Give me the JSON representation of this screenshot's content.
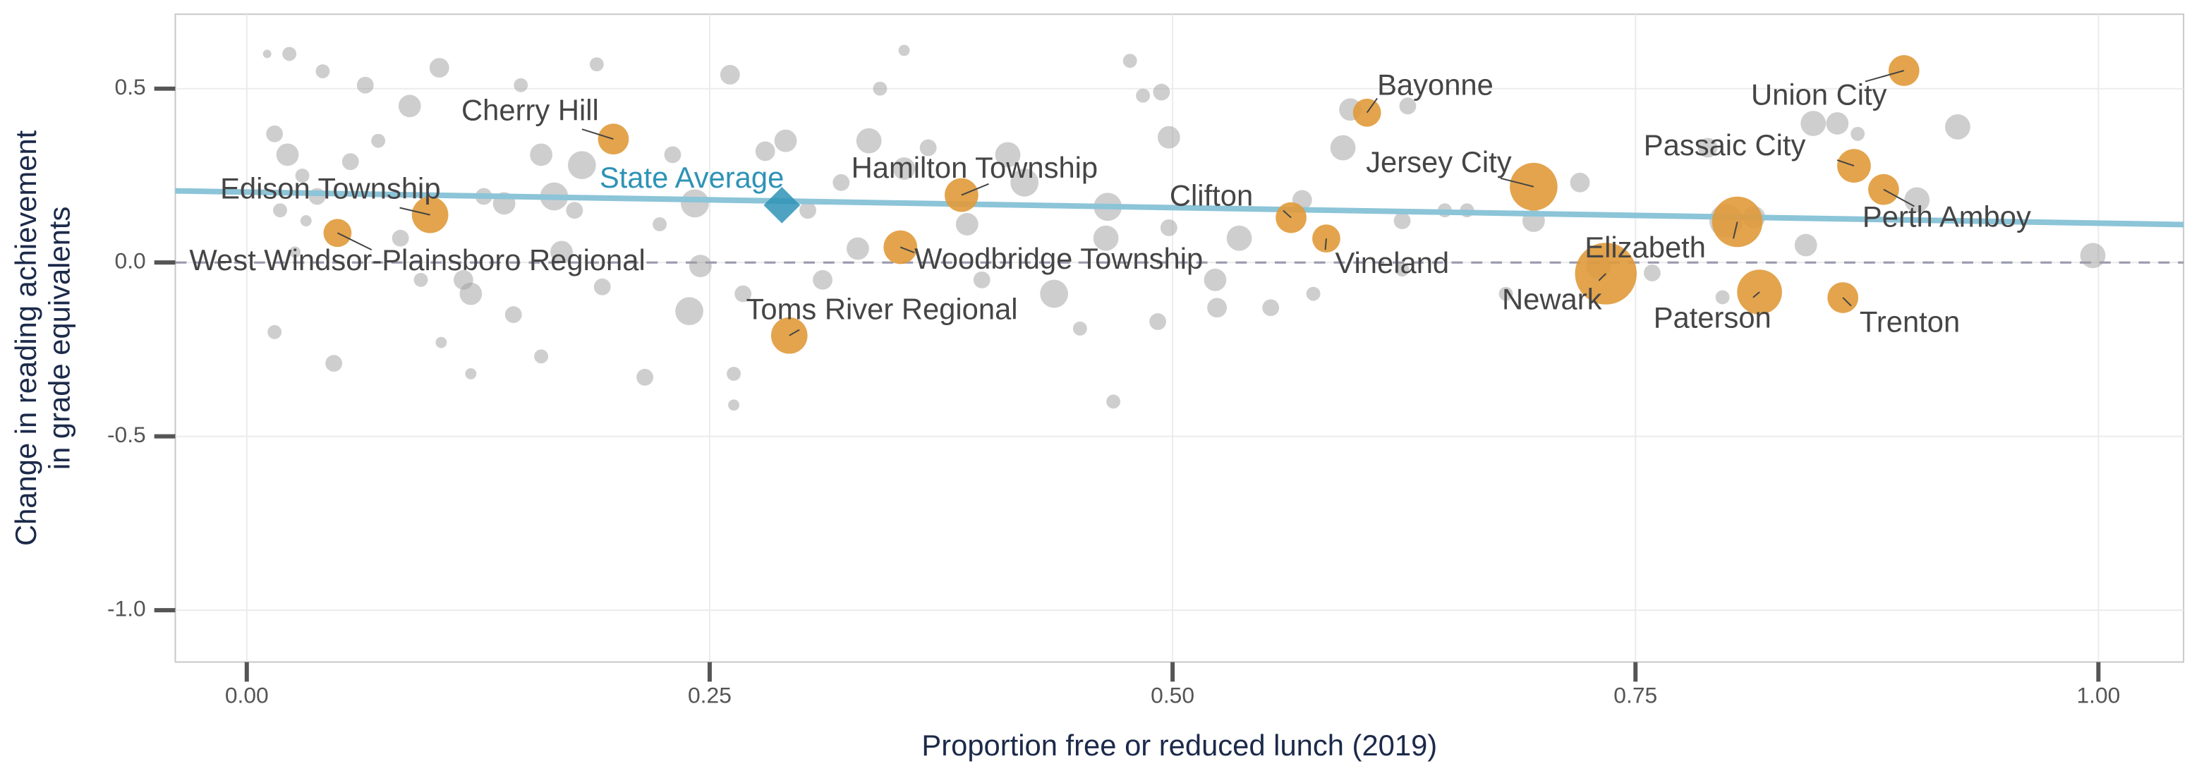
{
  "chart_data": {
    "type": "scatter",
    "xlabel": "Proportion free or reduced lunch (2019)",
    "ylabel": [
      "Change in reading  achievement",
      "in grade equivalents"
    ],
    "xlim": [
      -0.0386,
      1.046
    ],
    "ylim": [
      -1.149,
      0.714
    ],
    "xticks": [
      {
        "value": 0,
        "label": "0.00"
      },
      {
        "value": 0.25,
        "label": "0.25"
      },
      {
        "value": 0.5,
        "label": "0.50"
      },
      {
        "value": 0.75,
        "label": "0.75"
      },
      {
        "value": 1,
        "label": "1.00"
      }
    ],
    "yticks": [
      0.5,
      {
        "value": 0,
        "label": "0.0"
      },
      -0.5,
      {
        "value": -1,
        "label": "-1.0"
      }
    ],
    "grid": true,
    "reference_line": 0,
    "trend_line": {
      "x": [
        -0.0386,
        1.046
      ],
      "y": [
        0.206,
        0.109
      ],
      "color": "#8cc4d8"
    },
    "points": {
      "color": "#9e9e9e",
      "x": [
        0.011,
        0.023,
        0.041,
        0.064,
        0.088,
        0.104,
        0.015,
        0.022,
        0.03,
        0.038,
        0.018,
        0.032,
        0.026,
        0.015,
        0.047,
        0.056,
        0.071,
        0.083,
        0.094,
        0.117,
        0.121,
        0.105,
        0.121,
        0.128,
        0.139,
        0.148,
        0.159,
        0.166,
        0.177,
        0.181,
        0.189,
        0.17,
        0.144,
        0.159,
        0.192,
        0.215,
        0.223,
        0.23,
        0.242,
        0.239,
        0.245,
        0.261,
        0.263,
        0.263,
        0.268,
        0.28,
        0.291,
        0.303,
        0.311,
        0.321,
        0.33,
        0.336,
        0.342,
        0.355,
        0.355,
        0.368,
        0.389,
        0.397,
        0.411,
        0.42,
        0.436,
        0.45,
        0.464,
        0.465,
        0.468,
        0.477,
        0.484,
        0.494,
        0.498,
        0.498,
        0.492,
        0.523,
        0.524,
        0.536,
        0.553,
        0.57,
        0.576,
        0.592,
        0.596,
        0.624,
        0.627,
        0.647,
        0.659,
        0.695,
        0.72,
        0.73,
        0.759,
        0.789,
        0.797,
        0.814,
        0.842,
        0.846,
        0.859,
        0.87,
        0.902,
        0.924,
        0.997,
        0.68,
        0.624,
        0.799
      ],
      "y": [
        0.6,
        0.6,
        0.55,
        0.51,
        0.45,
        0.56,
        0.37,
        0.31,
        0.25,
        0.19,
        0.15,
        0.12,
        0.03,
        -0.2,
        -0.29,
        0.29,
        0.35,
        0.07,
        -0.05,
        -0.05,
        -0.09,
        -0.23,
        -0.32,
        0.19,
        0.17,
        0.51,
        0.31,
        0.19,
        0.15,
        0.28,
        0.57,
        0.03,
        -0.15,
        -0.27,
        -0.07,
        -0.33,
        0.11,
        0.31,
        0.17,
        -0.14,
        -0.01,
        0.54,
        -0.32,
        -0.41,
        -0.09,
        0.32,
        0.35,
        0.15,
        -0.05,
        0.23,
        0.04,
        0.35,
        0.5,
        0.61,
        0.27,
        0.33,
        0.11,
        -0.05,
        0.31,
        0.23,
        -0.09,
        -0.19,
        0.07,
        0.16,
        -0.4,
        0.58,
        0.48,
        0.49,
        0.36,
        0.1,
        -0.17,
        -0.05,
        -0.13,
        0.07,
        -0.13,
        0.18,
        -0.09,
        0.33,
        0.44,
        0.12,
        0.45,
        0.15,
        0.15,
        0.12,
        0.23,
        -0.01,
        -0.03,
        0.33,
        -0.1,
        0.13,
        0.05,
        0.4,
        0.4,
        0.37,
        0.18,
        0.39,
        0.02,
        -0.09,
        -0.02,
        0.12
      ],
      "size": [
        3,
        5,
        5,
        6,
        8,
        7,
        6,
        8,
        5,
        6,
        5,
        4,
        4,
        5,
        6,
        6,
        5,
        6,
        5,
        7,
        8,
        4,
        4,
        6,
        8,
        5,
        8,
        10,
        6,
        10,
        5,
        8,
        6,
        5,
        6,
        6,
        5,
        6,
        10,
        10,
        8,
        7,
        5,
        4,
        6,
        7,
        8,
        6,
        7,
        6,
        8,
        9,
        5,
        4,
        8,
        6,
        8,
        6,
        9,
        10,
        10,
        5,
        9,
        10,
        5,
        5,
        5,
        6,
        8,
        6,
        6,
        8,
        7,
        9,
        6,
        7,
        5,
        9,
        8,
        6,
        6,
        5,
        5,
        8,
        7,
        9,
        6,
        7,
        5,
        8,
        8,
        9,
        8,
        5,
        9,
        9,
        9,
        5,
        5,
        12
      ]
    },
    "districts": {
      "color": "#e09a3a",
      "labels": [
        "Union City",
        "Bayonne",
        "Cherry Hill",
        "Hamilton Township",
        "Jersey City",
        "Passaic City",
        "Perth Amboy",
        "Edison Township",
        "Elizabeth",
        "Clifton",
        "Vineland",
        "Woodbridge Township",
        "West Windsor-Plainsboro Regional",
        "Newark",
        "Paterson",
        "Trenton",
        "Toms River Regional"
      ],
      "x": [
        0.895,
        0.605,
        0.198,
        0.386,
        0.695,
        0.868,
        0.884,
        0.099,
        0.805,
        0.564,
        0.583,
        0.353,
        0.049,
        0.734,
        0.817,
        0.862,
        0.293
      ],
      "y": [
        0.552,
        0.431,
        0.355,
        0.194,
        0.218,
        0.278,
        0.21,
        0.137,
        0.117,
        0.129,
        0.069,
        0.044,
        0.085,
        -0.032,
        -0.085,
        -0.101,
        -0.21
      ],
      "size": [
        11,
        10,
        11,
        12,
        17,
        12,
        11,
        13,
        18,
        11,
        10,
        12,
        10,
        22,
        16,
        11,
        13
      ]
    },
    "state_average": {
      "label": "State Average",
      "x": 0.289,
      "y": 0.165,
      "color": "#2e93b6"
    }
  }
}
